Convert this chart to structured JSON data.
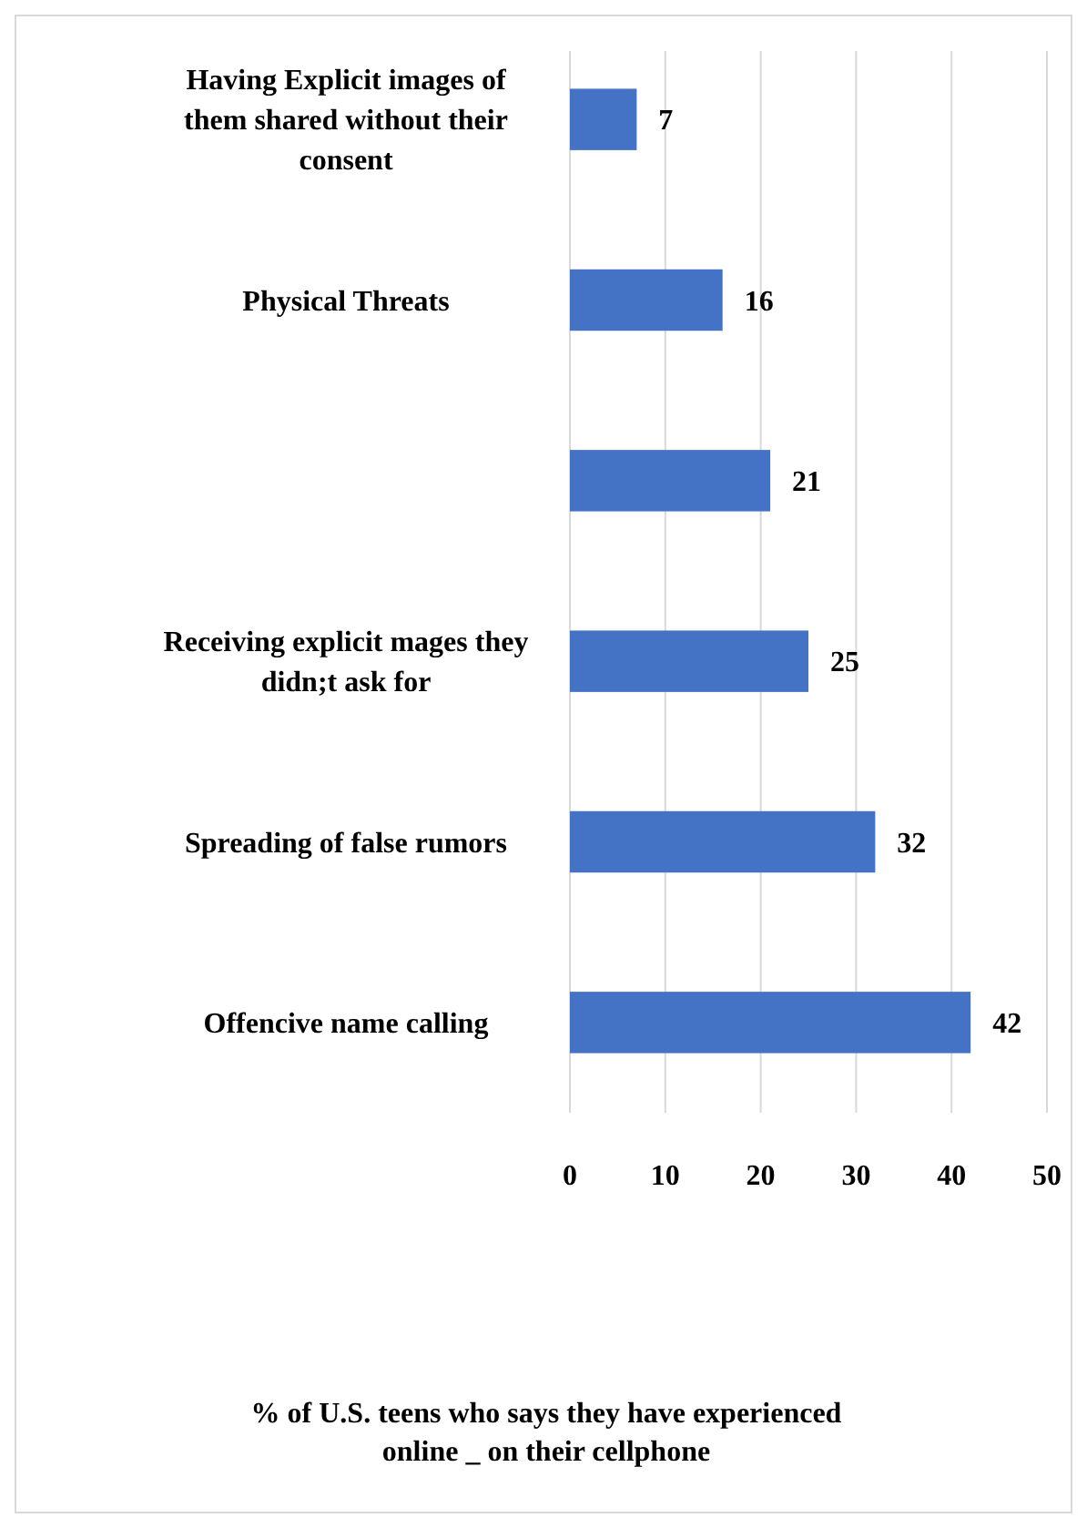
{
  "chart_data": {
    "type": "bar",
    "orientation": "horizontal",
    "categories": [
      "Having Explicit images of them shared without their consent",
      "Physical Threats",
      null,
      "Receiving explicit mages they didn;t  ask for",
      "Spreading of false rumors",
      "Offencive name calling"
    ],
    "values": [
      7,
      16,
      21,
      25,
      32,
      42
    ],
    "color": "#4472c4",
    "xlim": [
      0,
      50
    ],
    "xticks": [
      0,
      10,
      20,
      30,
      40,
      50
    ],
    "grid": "x",
    "data_labels": true,
    "annotations": [
      "% of U.S. teens who says they have experienced online _ on their cellphone"
    ]
  }
}
